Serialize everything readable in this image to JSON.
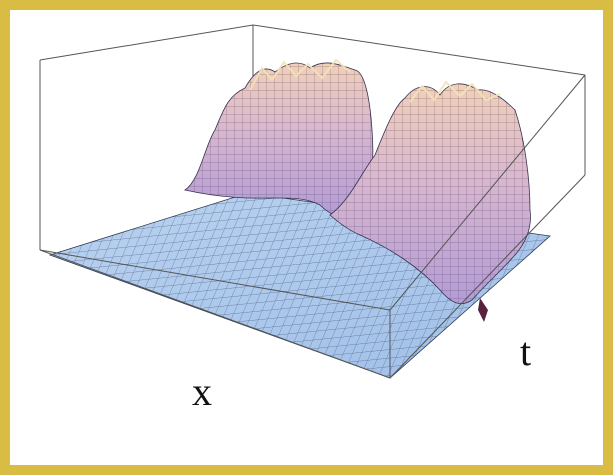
{
  "figure": {
    "axis_x_label": "x",
    "axis_t_label": "t",
    "colors": {
      "border": "#d8bc44",
      "background": "#ffffff",
      "surface_flat": "#a9c7ec",
      "surface_mid": "#bca2d8",
      "surface_peak": "#f0c9b6",
      "mesh_line": "#2f3a55",
      "box_line": "#555555"
    }
  }
}
